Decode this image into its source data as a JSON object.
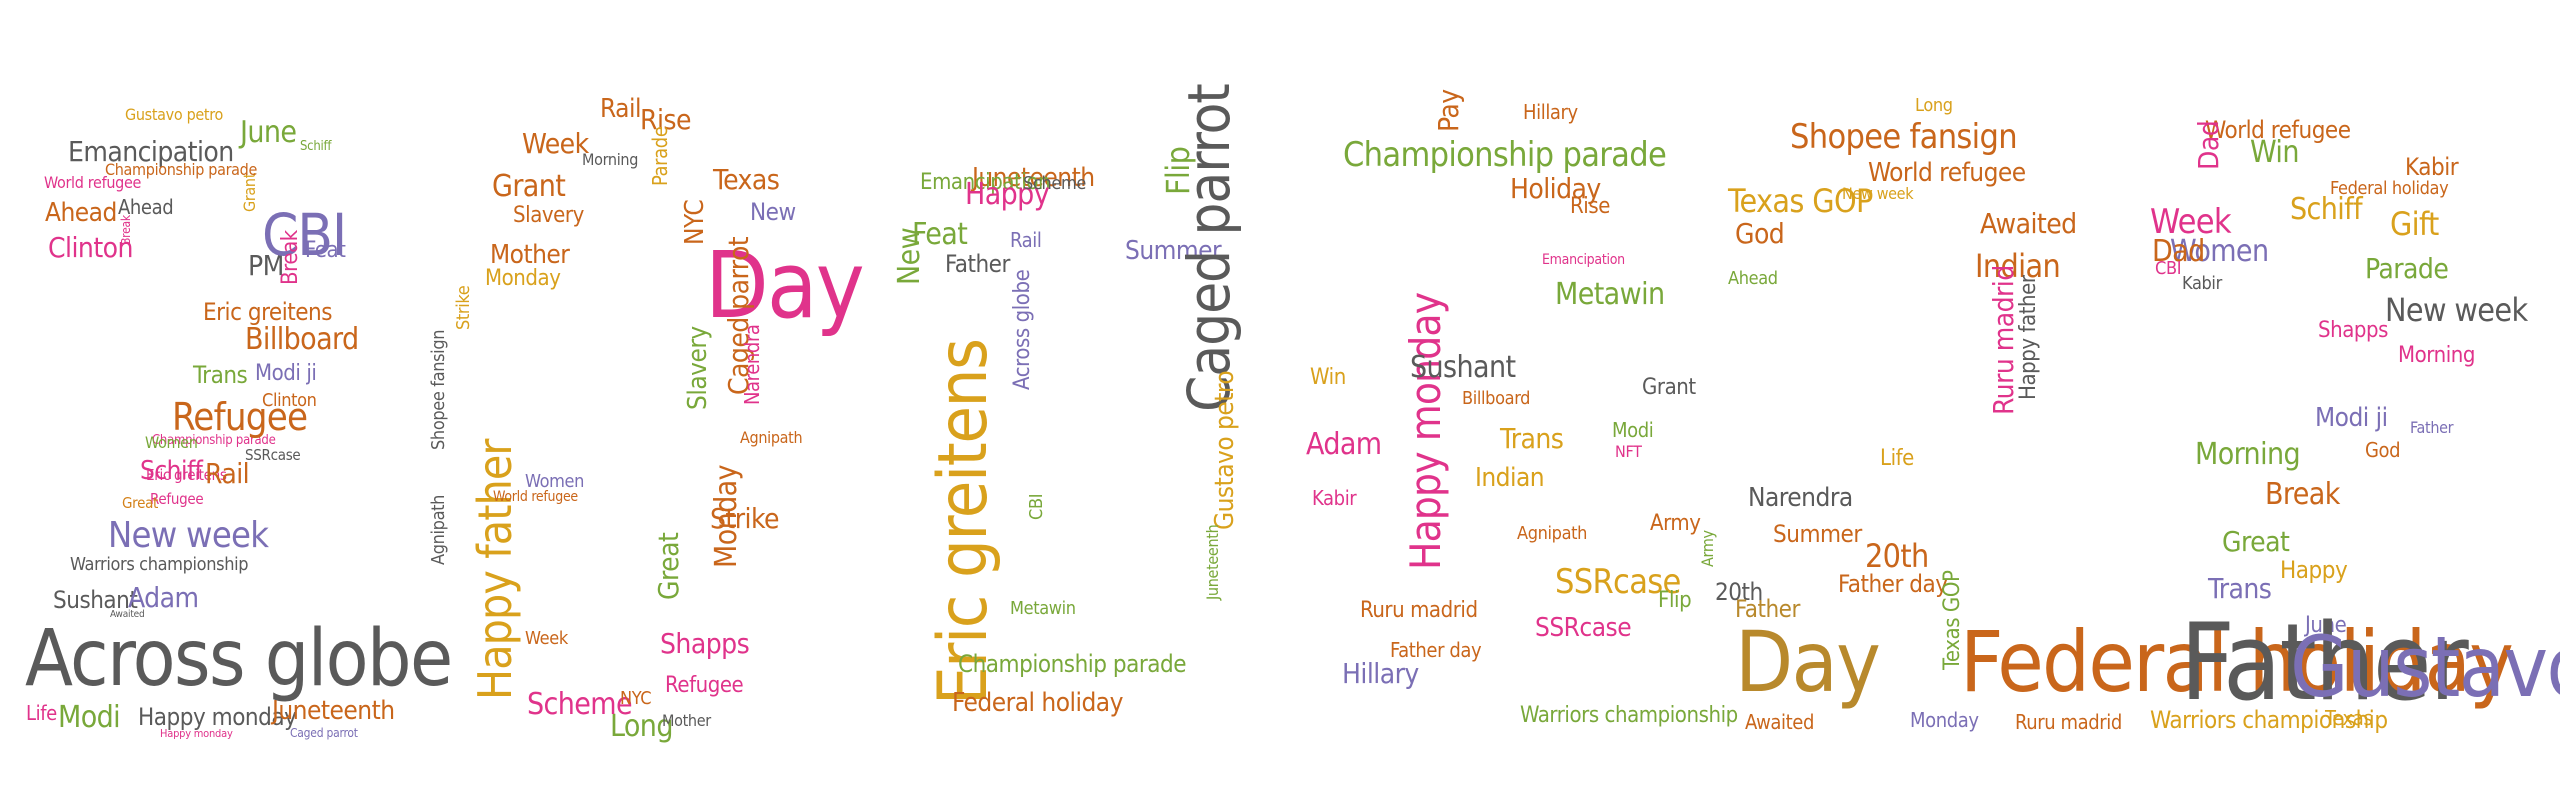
{
  "colors": {
    "gray": "#5a5a5a",
    "orange": "#d4821a",
    "pink": "#e0338b",
    "purple": "#7b6fb5",
    "green": "#79a83a",
    "yellow": "#d9a11c",
    "darkorange": "#c9661b",
    "brown": "#b8892c"
  },
  "words": [
    {
      "text": "Across globe",
      "color": "gray"
    },
    {
      "text": "Modi",
      "color": "green"
    },
    {
      "text": "Happy monday",
      "color": "gray"
    },
    {
      "text": "Juneteenth",
      "color": "darkorange"
    },
    {
      "text": "Life",
      "color": "pink"
    },
    {
      "text": "Caged parrot",
      "color": "purple"
    },
    {
      "text": "Happy monday",
      "color": "pink"
    },
    {
      "text": "Sushant",
      "color": "gray"
    },
    {
      "text": "Adam",
      "color": "purple"
    },
    {
      "text": "Awaited",
      "color": "gray"
    },
    {
      "text": "Warriors championship",
      "color": "gray"
    },
    {
      "text": "New week",
      "color": "purple"
    },
    {
      "text": "Refugee",
      "color": "pink"
    },
    {
      "text": "Great",
      "color": "orange"
    },
    {
      "text": "Eric greitens",
      "color": "pink"
    },
    {
      "text": "Schiff",
      "color": "pink"
    },
    {
      "text": "Rail",
      "color": "darkorange"
    },
    {
      "text": "SSRcase",
      "color": "gray"
    },
    {
      "text": "Championship parade",
      "color": "pink"
    },
    {
      "text": "Women",
      "color": "green"
    },
    {
      "text": "Refugee",
      "color": "darkorange"
    },
    {
      "text": "Clinton",
      "color": "darkorange"
    },
    {
      "text": "Trans",
      "color": "green"
    },
    {
      "text": "Modi ji",
      "color": "purple"
    },
    {
      "text": "Billboard",
      "color": "darkorange"
    },
    {
      "text": "Eric greitens",
      "color": "darkorange"
    },
    {
      "text": "PM",
      "color": "gray"
    },
    {
      "text": "CBI",
      "color": "purple"
    },
    {
      "text": "Feat",
      "color": "purple"
    },
    {
      "text": "Break",
      "color": "pink"
    },
    {
      "text": "Grant",
      "color": "yellow"
    },
    {
      "text": "June",
      "color": "green"
    },
    {
      "text": "Schiff",
      "color": "green"
    },
    {
      "text": "Gustavo petro",
      "color": "yellow"
    },
    {
      "text": "Emancipation",
      "color": "gray"
    },
    {
      "text": "Championship parade",
      "color": "darkorange"
    },
    {
      "text": "World refugee",
      "color": "pink"
    },
    {
      "text": "Ahead",
      "color": "darkorange"
    },
    {
      "text": "Ahead",
      "color": "gray"
    },
    {
      "text": "Clinton",
      "color": "pink"
    },
    {
      "text": "Break",
      "color": "pink"
    },
    {
      "text": "Happy father",
      "color": "yellow"
    },
    {
      "text": "Agnipath",
      "color": "gray"
    },
    {
      "text": "Shopee fansign",
      "color": "gray"
    },
    {
      "text": "Strike",
      "color": "yellow"
    },
    {
      "text": "Mother",
      "color": "darkorange"
    },
    {
      "text": "Monday",
      "color": "yellow"
    },
    {
      "text": "Slavery",
      "color": "darkorange"
    },
    {
      "text": "Grant",
      "color": "darkorange"
    },
    {
      "text": "Week",
      "color": "darkorange"
    },
    {
      "text": "Rail",
      "color": "darkorange"
    },
    {
      "text": "Rise",
      "color": "darkorange"
    },
    {
      "text": "Parade",
      "color": "yellow"
    },
    {
      "text": "Morning",
      "color": "gray"
    },
    {
      "text": "Texas",
      "color": "darkorange"
    },
    {
      "text": "New",
      "color": "purple"
    },
    {
      "text": "NYC",
      "color": "darkorange"
    },
    {
      "text": "Day",
      "color": "pink"
    },
    {
      "text": "Caged parrot",
      "color": "darkorange"
    },
    {
      "text": "Slavery",
      "color": "green"
    },
    {
      "text": "Narendra",
      "color": "pink"
    },
    {
      "text": "Strike",
      "color": "darkorange"
    },
    {
      "text": "Monday",
      "color": "darkorange"
    },
    {
      "text": "Agnipath",
      "color": "darkorange"
    },
    {
      "text": "Great",
      "color": "green"
    },
    {
      "text": "Shapps",
      "color": "pink"
    },
    {
      "text": "Long",
      "color": "green"
    },
    {
      "text": "Scheme",
      "color": "pink"
    },
    {
      "text": "NYC",
      "color": "darkorange"
    },
    {
      "text": "Refugee",
      "color": "pink"
    },
    {
      "text": "Mother",
      "color": "gray"
    },
    {
      "text": "World refugee",
      "color": "darkorange"
    },
    {
      "text": "Women",
      "color": "purple"
    },
    {
      "text": "Week",
      "color": "darkorange"
    },
    {
      "text": "Eric greitens",
      "color": "yellow"
    },
    {
      "text": "New",
      "color": "green"
    },
    {
      "text": "Juneteenth",
      "color": "darkorange"
    },
    {
      "text": "Emancipation",
      "color": "green"
    },
    {
      "text": "Feat",
      "color": "green"
    },
    {
      "text": "Happy",
      "color": "pink"
    },
    {
      "text": "Rail",
      "color": "purple"
    },
    {
      "text": "Flip",
      "color": "green"
    },
    {
      "text": "Scheme",
      "color": "gray"
    },
    {
      "text": "Father",
      "color": "gray"
    },
    {
      "text": "Summer",
      "color": "purple"
    },
    {
      "text": "Caged parrot",
      "color": "gray"
    },
    {
      "text": "Gustavo petro",
      "color": "yellow"
    },
    {
      "text": "Across globe",
      "color": "purple"
    },
    {
      "text": "CBI",
      "color": "green"
    },
    {
      "text": "Metawin",
      "color": "green"
    },
    {
      "text": "Championship parade",
      "color": "green"
    },
    {
      "text": "Federal holiday",
      "color": "darkorange"
    },
    {
      "text": "Juneteenth",
      "color": "green"
    },
    {
      "text": "Happy monday",
      "color": "pink"
    },
    {
      "text": "Championship parade",
      "color": "green"
    },
    {
      "text": "Holiday",
      "color": "darkorange"
    },
    {
      "text": "Metawin",
      "color": "green"
    },
    {
      "text": "Emancipation",
      "color": "pink"
    },
    {
      "text": "Hillary",
      "color": "darkorange"
    },
    {
      "text": "Pay",
      "color": "darkorange"
    },
    {
      "text": "Rise",
      "color": "darkorange"
    },
    {
      "text": "Sushant",
      "color": "gray"
    },
    {
      "text": "Billboard",
      "color": "darkorange"
    },
    {
      "text": "Trans",
      "color": "yellow"
    },
    {
      "text": "Indian",
      "color": "yellow"
    },
    {
      "text": "Agnipath",
      "color": "darkorange"
    },
    {
      "text": "SSRcase",
      "color": "yellow"
    },
    {
      "text": "SSRcase",
      "color": "pink"
    },
    {
      "text": "Hillary",
      "color": "purple"
    },
    {
      "text": "Warriors championship",
      "color": "green"
    },
    {
      "text": "Ruru madrid",
      "color": "darkorange"
    },
    {
      "text": "Father day",
      "color": "darkorange"
    },
    {
      "text": "Adam",
      "color": "pink"
    },
    {
      "text": "Win",
      "color": "yellow"
    },
    {
      "text": "Kabir",
      "color": "pink"
    },
    {
      "text": "Grant",
      "color": "gray"
    },
    {
      "text": "Modi",
      "color": "green"
    },
    {
      "text": "Army",
      "color": "darkorange"
    },
    {
      "text": "Flip",
      "color": "green"
    },
    {
      "text": "NFT",
      "color": "pink"
    },
    {
      "text": "Shopee fansign",
      "color": "darkorange"
    },
    {
      "text": "World refugee",
      "color": "darkorange"
    },
    {
      "text": "Texas GOP",
      "color": "yellow"
    },
    {
      "text": "God",
      "color": "darkorange"
    },
    {
      "text": "Awaited",
      "color": "darkorange"
    },
    {
      "text": "Indian",
      "color": "darkorange"
    },
    {
      "text": "Ruru madrid",
      "color": "pink"
    },
    {
      "text": "Happy father",
      "color": "gray"
    },
    {
      "text": "Life",
      "color": "yellow"
    },
    {
      "text": "Narendra",
      "color": "gray"
    },
    {
      "text": "Summer",
      "color": "darkorange"
    },
    {
      "text": "20th",
      "color": "darkorange"
    },
    {
      "text": "Army",
      "color": "green"
    },
    {
      "text": "20th",
      "color": "gray"
    },
    {
      "text": "Father day",
      "color": "darkorange"
    },
    {
      "text": "Father",
      "color": "brown"
    },
    {
      "text": "Day",
      "color": "brown"
    },
    {
      "text": "Federal holiday",
      "color": "darkorange"
    },
    {
      "text": "Awaited",
      "color": "darkorange"
    },
    {
      "text": "Monday",
      "color": "purple"
    },
    {
      "text": "Ruru madrid",
      "color": "darkorange"
    },
    {
      "text": "Long",
      "color": "yellow"
    },
    {
      "text": "Ahead",
      "color": "green"
    },
    {
      "text": "New week",
      "color": "yellow"
    },
    {
      "text": "Texas GOP",
      "color": "green"
    },
    {
      "text": "World refugee",
      "color": "darkorange"
    },
    {
      "text": "Win",
      "color": "green"
    },
    {
      "text": "Kabir",
      "color": "darkorange"
    },
    {
      "text": "Dad",
      "color": "pink"
    },
    {
      "text": "Week",
      "color": "pink"
    },
    {
      "text": "Women",
      "color": "purple"
    },
    {
      "text": "Federal holiday",
      "color": "darkorange"
    },
    {
      "text": "Gift",
      "color": "yellow"
    },
    {
      "text": "Schiff",
      "color": "yellow"
    },
    {
      "text": "Parade",
      "color": "green"
    },
    {
      "text": "New week",
      "color": "gray"
    },
    {
      "text": "Shapps",
      "color": "pink"
    },
    {
      "text": "Morning",
      "color": "pink"
    },
    {
      "text": "Morning",
      "color": "green"
    },
    {
      "text": "Modi ji",
      "color": "purple"
    },
    {
      "text": "God",
      "color": "darkorange"
    },
    {
      "text": "Break",
      "color": "darkorange"
    },
    {
      "text": "Great",
      "color": "green"
    },
    {
      "text": "Happy",
      "color": "yellow"
    },
    {
      "text": "Trans",
      "color": "purple"
    },
    {
      "text": "June",
      "color": "purple"
    },
    {
      "text": "Father",
      "color": "gray"
    },
    {
      "text": "Gustavo petro",
      "color": "purple"
    },
    {
      "text": "Warriors championship",
      "color": "yellow"
    },
    {
      "text": "Texas",
      "color": "yellow"
    },
    {
      "text": "Father",
      "color": "purple"
    },
    {
      "text": "Dad",
      "color": "darkorange"
    },
    {
      "text": "CBI",
      "color": "pink"
    },
    {
      "text": "Kabir",
      "color": "gray"
    }
  ]
}
